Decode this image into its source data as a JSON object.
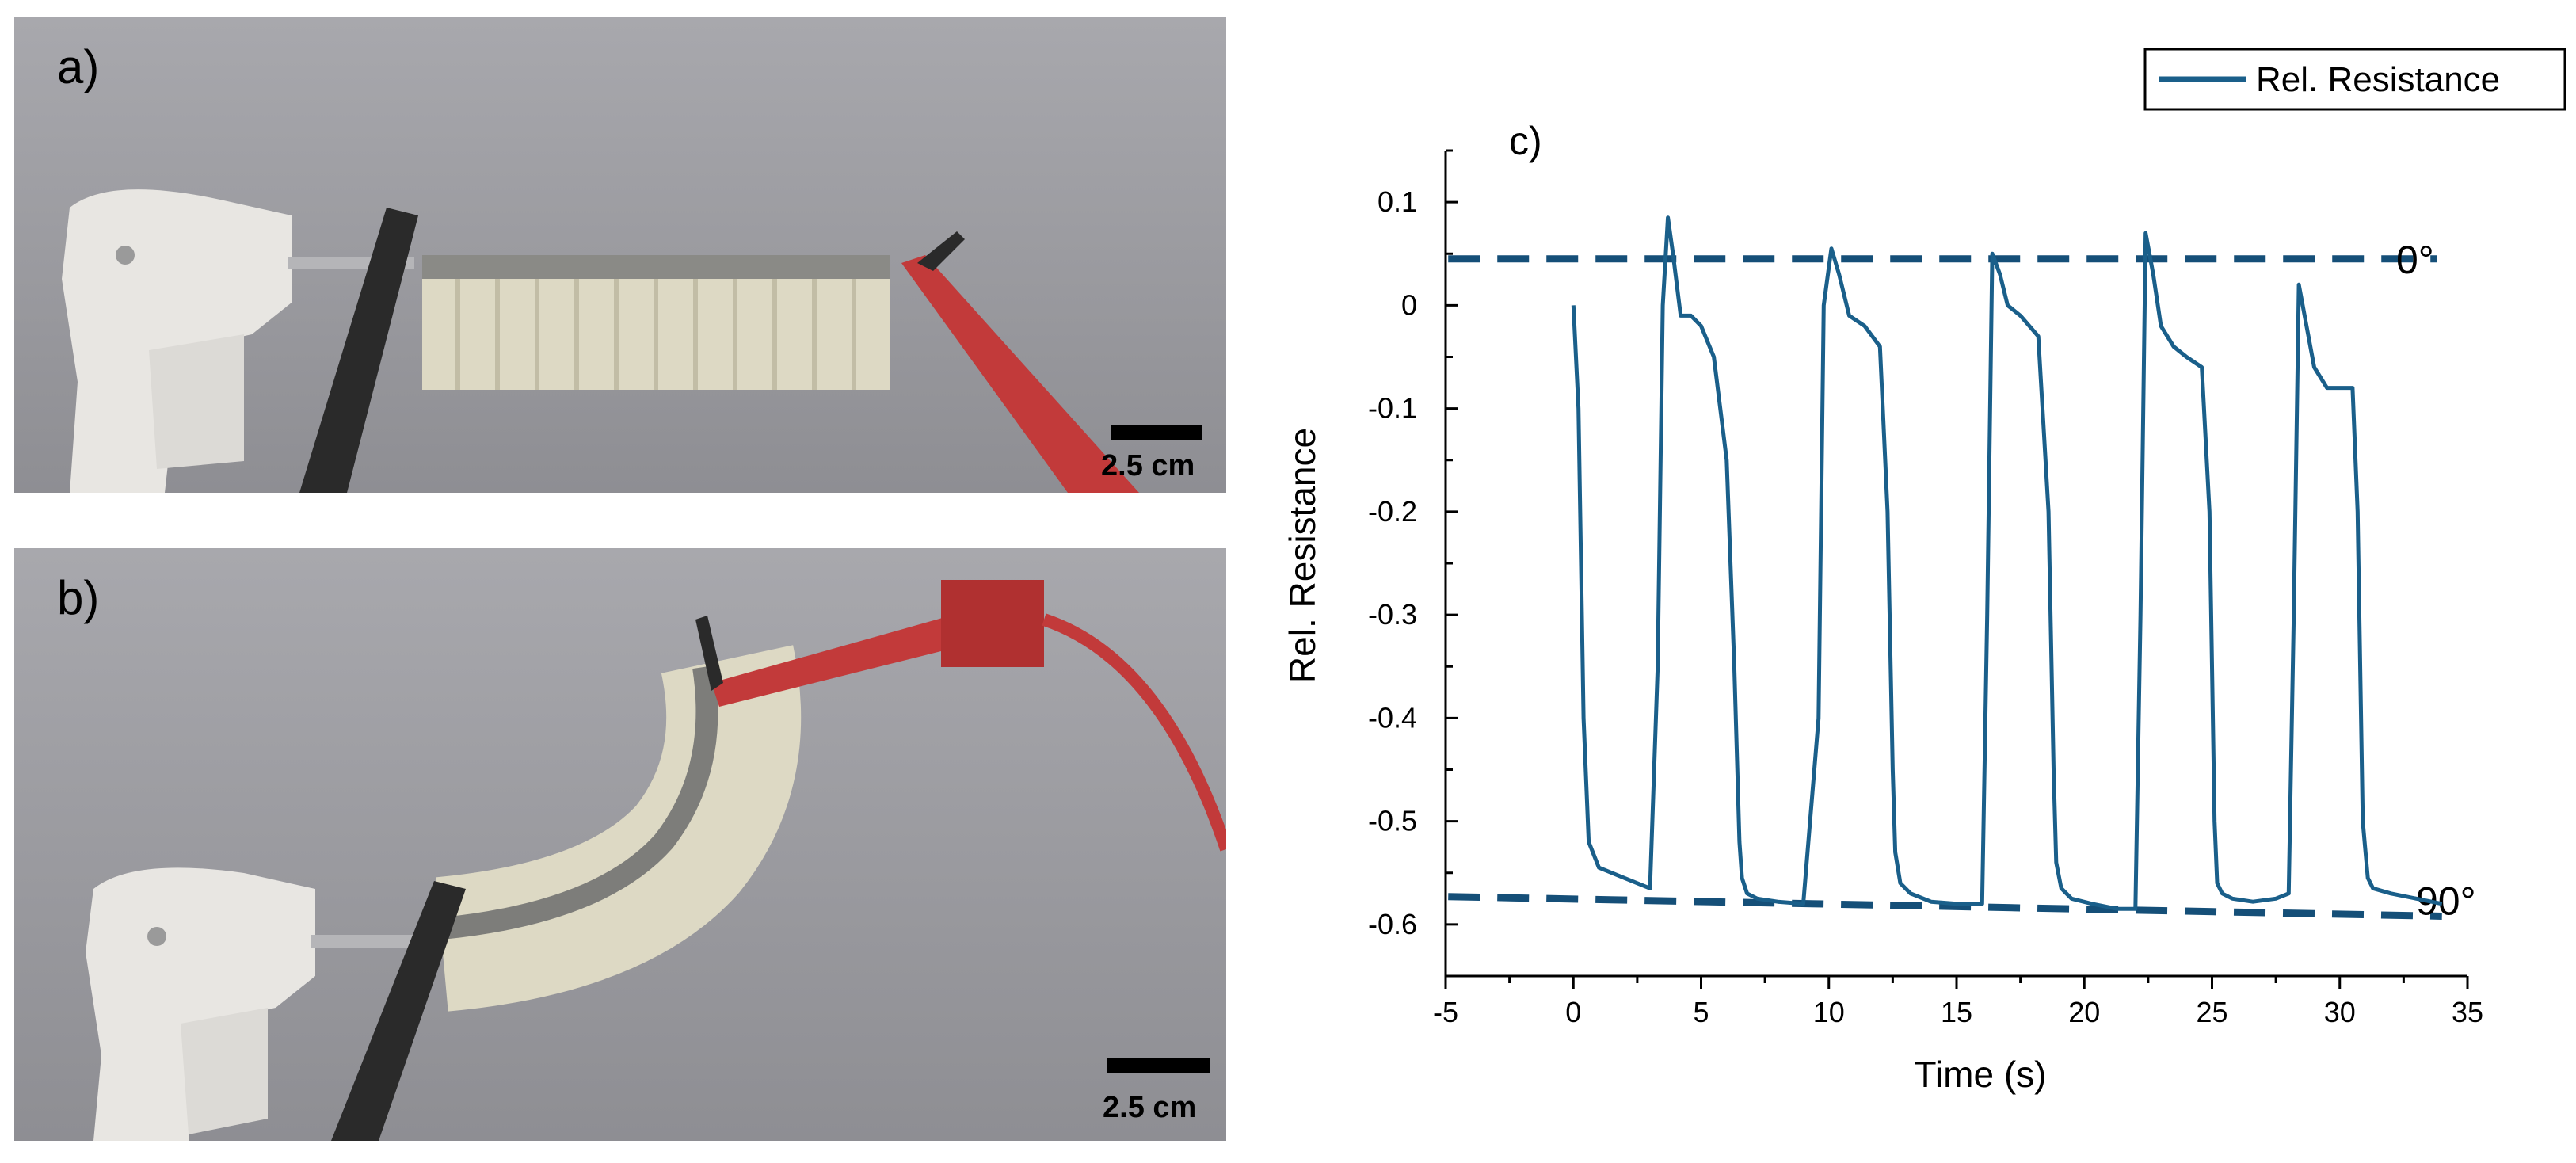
{
  "panels": {
    "a": {
      "label": "a)",
      "scalebar": "2.5 cm"
    },
    "b": {
      "label": "b)",
      "scalebar": "2.5 cm"
    },
    "c": {
      "label": "c)"
    }
  },
  "colors": {
    "series": "#1a5f8a",
    "reference_lines": "#154f78",
    "background_photo": "#9c9ca1",
    "actuator": "#ddd9c4",
    "red_probe": "#c23a3a",
    "black_probe": "#2a2a2a"
  },
  "chart_data": {
    "type": "line",
    "xlabel": "Time (s)",
    "ylabel": "Rel. Resistance",
    "xlim": [
      -5,
      35
    ],
    "ylim": [
      -0.65,
      0.15
    ],
    "xticks": [
      -5,
      0,
      5,
      10,
      15,
      20,
      25,
      30,
      35
    ],
    "yticks": [
      0.1,
      0,
      -0.1,
      -0.2,
      -0.3,
      -0.4,
      -0.5,
      -0.6
    ],
    "xtick_labels": [
      "-5",
      "0",
      "5",
      "10",
      "15",
      "20",
      "25",
      "30",
      "35"
    ],
    "ytick_labels": [
      "0.1",
      "0",
      "-0.1",
      "-0.2",
      "-0.3",
      "-0.4",
      "-0.5",
      "-0.6"
    ],
    "legend": {
      "position": "top-right",
      "entries": [
        "Rel. Resistance"
      ]
    },
    "series": [
      {
        "name": "Rel. Resistance",
        "x": [
          0,
          0.2,
          0.4,
          0.6,
          1.0,
          2.0,
          3.0,
          3.3,
          3.5,
          3.7,
          3.9,
          4.2,
          4.6,
          5.0,
          5.5,
          6.0,
          6.3,
          6.5,
          6.6,
          6.8,
          7.2,
          8.0,
          9.0,
          9.6,
          9.8,
          10.1,
          10.4,
          10.8,
          11.4,
          12.0,
          12.3,
          12.5,
          12.6,
          12.8,
          13.2,
          14.0,
          15.0,
          16.0,
          16.2,
          16.4,
          16.7,
          17.0,
          17.5,
          18.2,
          18.6,
          18.8,
          18.9,
          19.1,
          19.5,
          20.3,
          21.3,
          22.0,
          22.2,
          22.4,
          22.7,
          23.0,
          23.5,
          24.0,
          24.6,
          24.9,
          25.1,
          25.2,
          25.4,
          25.8,
          26.6,
          27.5,
          28.0,
          28.2,
          28.4,
          28.7,
          29.0,
          29.5,
          30.0,
          30.5,
          30.7,
          30.9,
          31.1,
          31.3,
          32.0,
          33.0,
          34.0
        ],
        "y": [
          0.0,
          -0.1,
          -0.4,
          -0.52,
          -0.545,
          -0.555,
          -0.565,
          -0.35,
          0.0,
          0.085,
          0.05,
          -0.01,
          -0.01,
          -0.02,
          -0.05,
          -0.15,
          -0.35,
          -0.52,
          -0.555,
          -0.57,
          -0.575,
          -0.578,
          -0.58,
          -0.4,
          0.0,
          0.055,
          0.03,
          -0.01,
          -0.02,
          -0.04,
          -0.2,
          -0.45,
          -0.53,
          -0.56,
          -0.57,
          -0.578,
          -0.58,
          -0.58,
          -0.3,
          0.05,
          0.03,
          0.0,
          -0.01,
          -0.03,
          -0.2,
          -0.45,
          -0.54,
          -0.565,
          -0.575,
          -0.58,
          -0.585,
          -0.585,
          -0.3,
          0.07,
          0.03,
          -0.02,
          -0.04,
          -0.05,
          -0.06,
          -0.2,
          -0.5,
          -0.56,
          -0.57,
          -0.575,
          -0.578,
          -0.575,
          -0.57,
          -0.3,
          0.02,
          -0.02,
          -0.06,
          -0.08,
          -0.08,
          -0.08,
          -0.2,
          -0.5,
          -0.555,
          -0.565,
          -0.57,
          -0.575,
          -0.58
        ]
      }
    ],
    "reference_lines": [
      {
        "label": "0°",
        "x": [
          -4.9,
          33.8
        ],
        "y": [
          0.045,
          0.045
        ]
      },
      {
        "label": "90°",
        "x": [
          -4.9,
          34.0
        ],
        "y": [
          -0.573,
          -0.592
        ]
      }
    ]
  }
}
